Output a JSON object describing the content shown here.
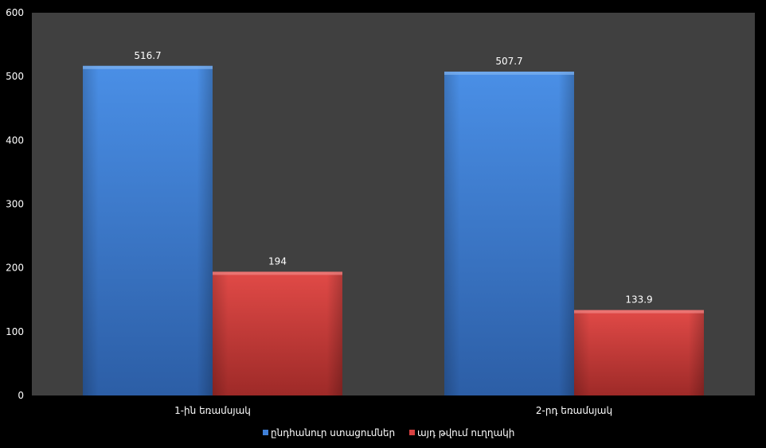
{
  "chart_data": {
    "type": "bar",
    "categories": [
      "1-ին եռամսյակ",
      "2-րդ եռամսյակ"
    ],
    "series": [
      {
        "name": "ընդհանուր ստացումներ",
        "values": [
          516.7,
          507.7
        ],
        "labels": [
          "516.7",
          "507.7"
        ]
      },
      {
        "name": "այդ թվում ուղղակի",
        "values": [
          194,
          133.9
        ],
        "labels": [
          "194",
          "133.9"
        ]
      }
    ],
    "yticks": [
      "0",
      "100",
      "200",
      "300",
      "400",
      "500",
      "600"
    ],
    "ylim": [
      0,
      600
    ],
    "grid": false,
    "legend_position": "bottom"
  },
  "colors": {
    "page_background": "#000000",
    "plot_background": "#404040",
    "series": [
      "#3f80d8",
      "#d94141"
    ]
  }
}
